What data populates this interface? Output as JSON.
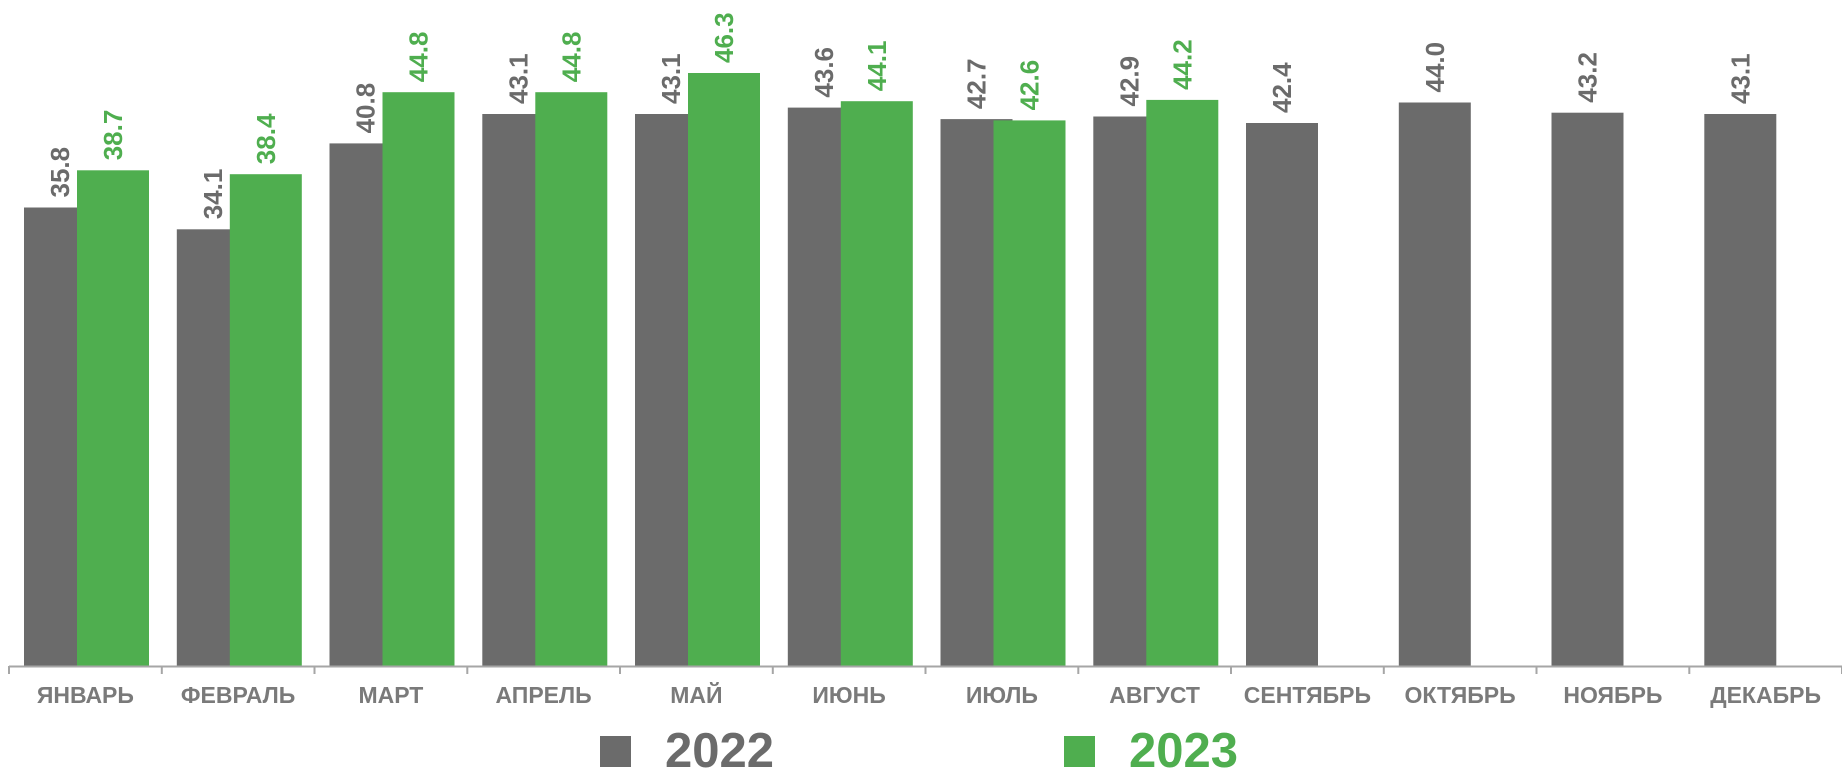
{
  "chart_data": {
    "type": "bar",
    "categories": [
      "ЯНВАРЬ",
      "ФЕВРАЛЬ",
      "МАРТ",
      "АПРЕЛЬ",
      "МАЙ",
      "ИЮНЬ",
      "ИЮЛЬ",
      "АВГУСТ",
      "СЕНТЯБРЬ",
      "ОКТЯБРЬ",
      "НОЯБРЬ",
      "ДЕКАБРЬ"
    ],
    "series": [
      {
        "name": "2022",
        "color": "#6b6b6b",
        "label_color": "#6b6b6b",
        "values": [
          35.8,
          34.1,
          40.8,
          43.1,
          43.1,
          43.6,
          42.7,
          42.9,
          42.4,
          44.0,
          43.2,
          43.1
        ],
        "labels": [
          "35.8",
          "34.1",
          "40.8",
          "43.1",
          "43.1",
          "43.6",
          "42.7",
          "42.9",
          "42.4",
          "44.0",
          "43.2",
          "43.1"
        ]
      },
      {
        "name": "2023",
        "color": "#4fae4f",
        "label_color": "#4fae4f",
        "values": [
          38.7,
          38.4,
          44.8,
          44.8,
          46.3,
          44.1,
          42.6,
          44.2,
          null,
          null,
          null,
          null
        ],
        "labels": [
          "38.7",
          "38.4",
          "44.8",
          "44.8",
          "46.3",
          "44.1",
          "42.6",
          "44.2",
          "",
          "",
          "",
          ""
        ]
      }
    ],
    "title": "",
    "xlabel": "",
    "ylabel": "",
    "ylim": [
      0,
      52
    ],
    "grid": false,
    "legend_position": "bottom",
    "axis_color": "#a6a6a6",
    "tick_label_color": "#7a7a7a"
  },
  "legend": {
    "items": [
      {
        "label": "2022",
        "color": "#6b6b6b"
      },
      {
        "label": "2023",
        "color": "#4fae4f"
      }
    ]
  }
}
